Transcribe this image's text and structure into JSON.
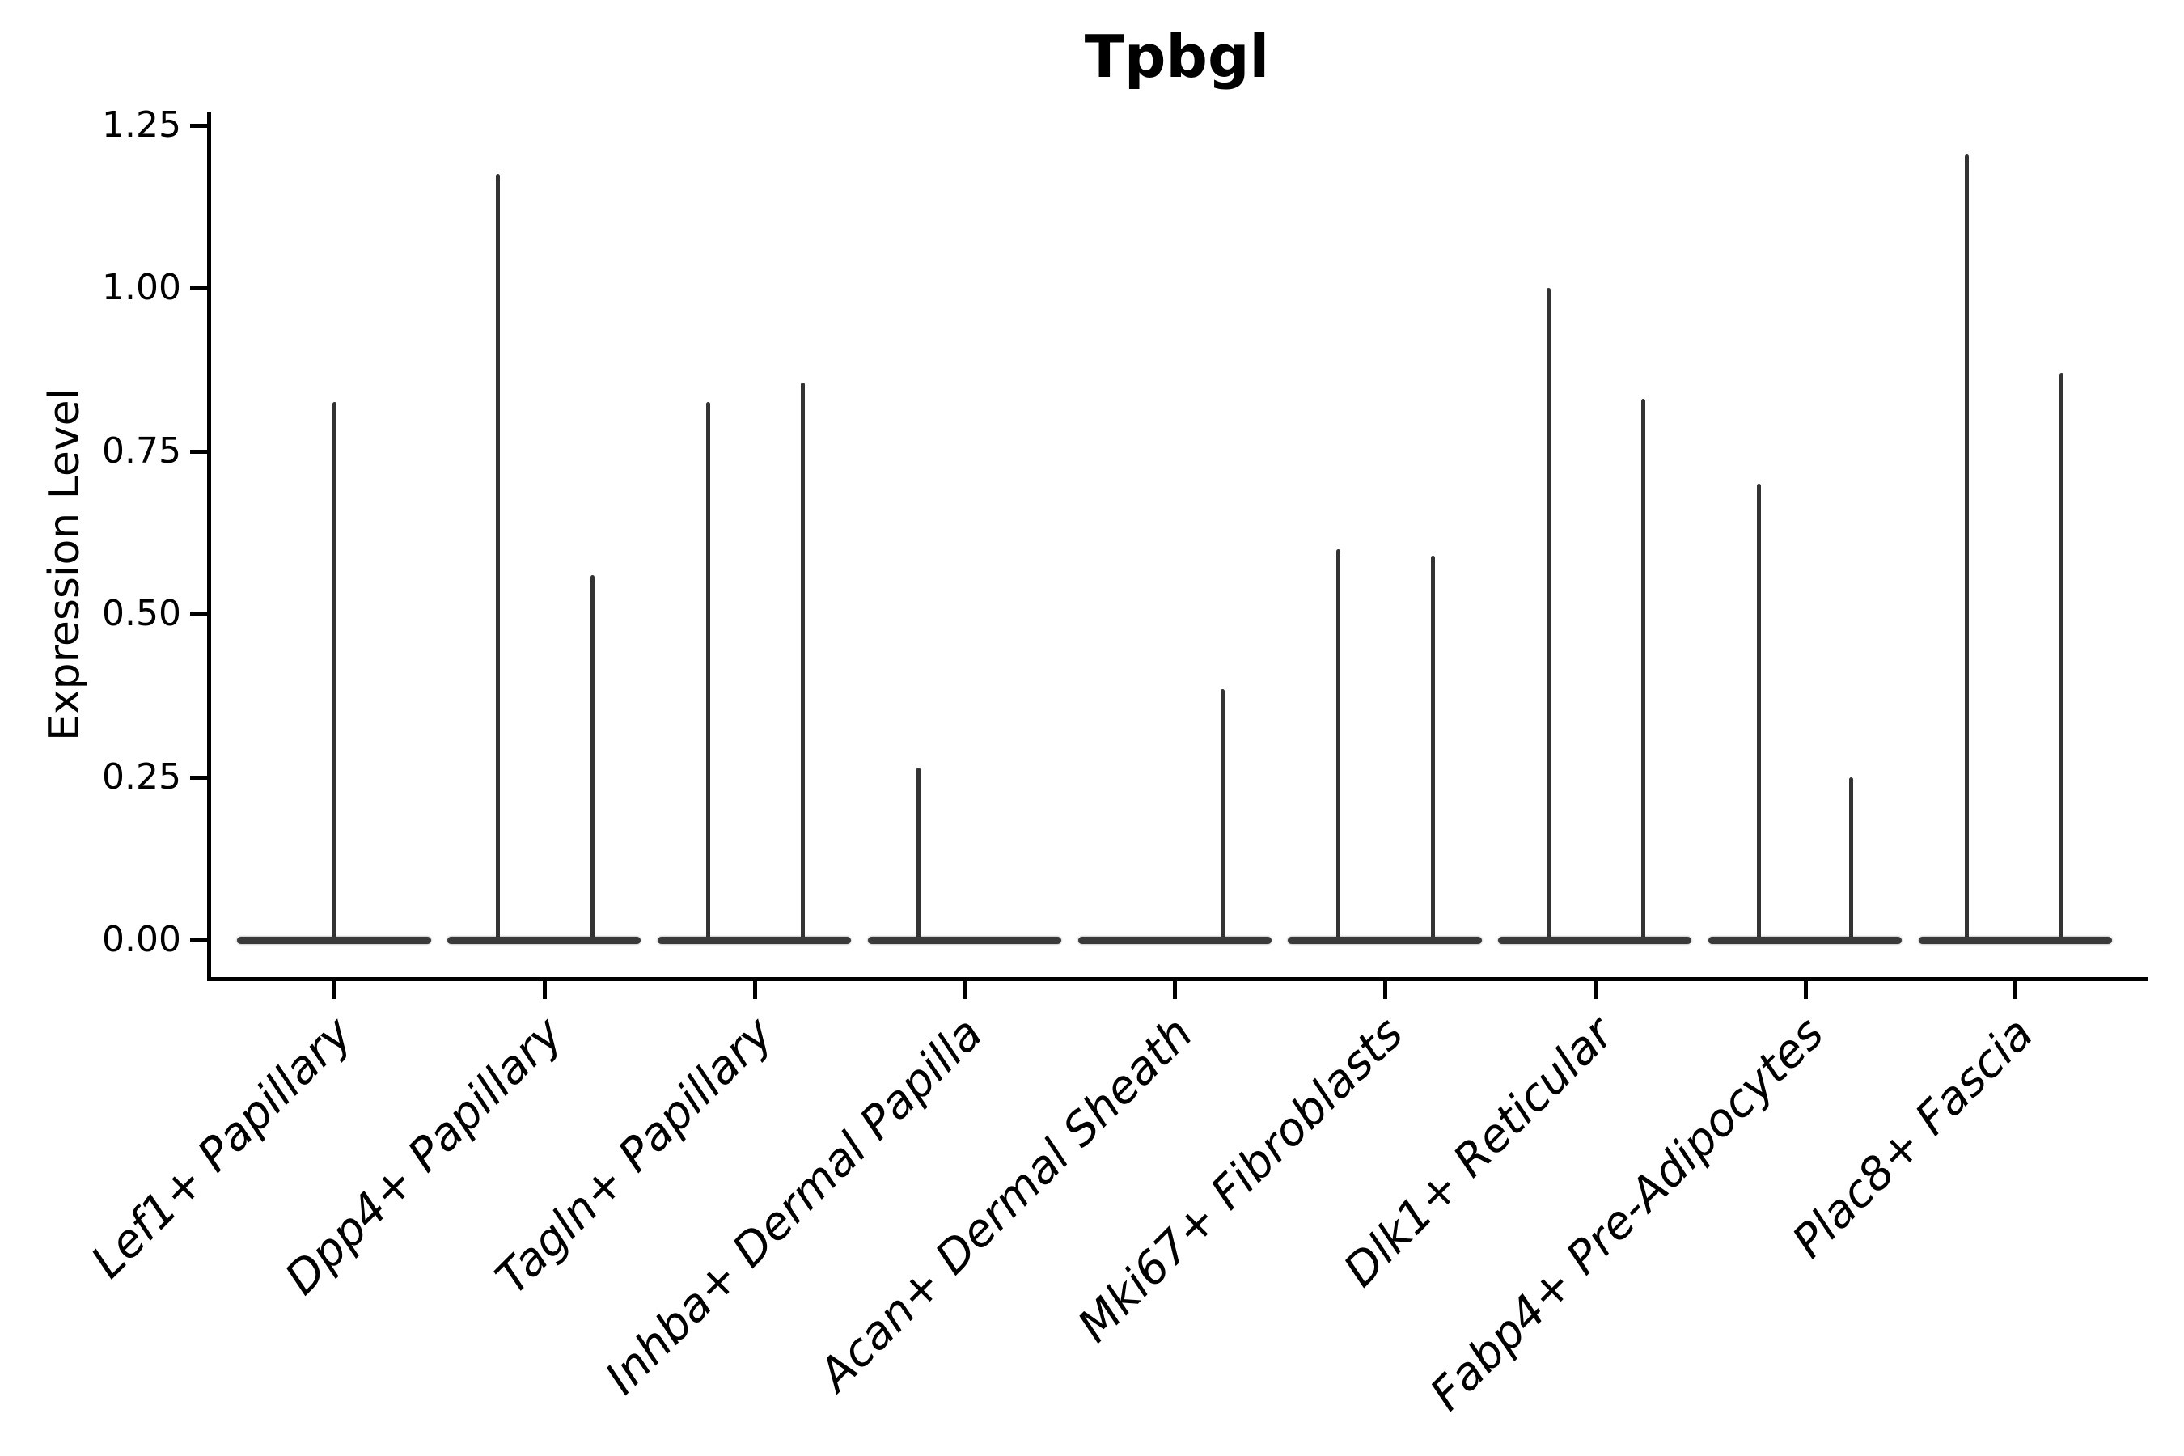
{
  "chart_data": {
    "type": "violin",
    "title": "Tpbgl",
    "ylabel": "Expression Level",
    "xlabel": "",
    "grid": false,
    "legend": null,
    "ylim": [
      -0.06,
      1.27
    ],
    "ytick_values": [
      0,
      0.25,
      0.5,
      0.75,
      1.0,
      1.25
    ],
    "ytick_labels": [
      "0.00",
      "0.25",
      "0.50",
      "0.75",
      "1.00",
      "1.25"
    ],
    "categories": [
      "Lef1+ Papillary",
      "Dpp4+ Papillary",
      "Tagln+ Papillary",
      "Inhba+ Dermal Papilla",
      "Acan+ Dermal Sheath",
      "Mki67+ Fibroblasts",
      "Dlk1+ Reticular",
      "Fabp4+ Pre-Adipocytes",
      "Plac8+ Fascia"
    ],
    "violins": [
      {
        "category": "Lef1+ Papillary",
        "base_halfwidth_frac": 0.46,
        "spikes": [
          {
            "dx_frac": 0.0,
            "max": 0.825
          }
        ]
      },
      {
        "category": "Dpp4+ Papillary",
        "base_halfwidth_frac": 0.46,
        "spikes": [
          {
            "dx_frac": -0.22,
            "max": 1.175
          },
          {
            "dx_frac": 0.23,
            "max": 0.56
          }
        ]
      },
      {
        "category": "Tagln+ Papillary",
        "base_halfwidth_frac": 0.46,
        "spikes": [
          {
            "dx_frac": -0.22,
            "max": 0.825
          },
          {
            "dx_frac": 0.23,
            "max": 0.855
          }
        ]
      },
      {
        "category": "Inhba+ Dermal Papilla",
        "base_halfwidth_frac": 0.46,
        "spikes": [
          {
            "dx_frac": -0.22,
            "max": 0.265
          }
        ]
      },
      {
        "category": "Acan+ Dermal Sheath",
        "base_halfwidth_frac": 0.46,
        "spikes": [
          {
            "dx_frac": 0.23,
            "max": 0.385
          }
        ]
      },
      {
        "category": "Mki67+ Fibroblasts",
        "base_halfwidth_frac": 0.46,
        "spikes": [
          {
            "dx_frac": -0.22,
            "max": 0.6
          },
          {
            "dx_frac": 0.23,
            "max": 0.59
          }
        ]
      },
      {
        "category": "Dlk1+ Reticular",
        "base_halfwidth_frac": 0.46,
        "spikes": [
          {
            "dx_frac": -0.22,
            "max": 1.0
          },
          {
            "dx_frac": 0.23,
            "max": 0.83
          }
        ]
      },
      {
        "category": "Fabp4+ Pre-Adipocytes",
        "base_halfwidth_frac": 0.46,
        "spikes": [
          {
            "dx_frac": -0.22,
            "max": 0.7
          },
          {
            "dx_frac": 0.22,
            "max": 0.25
          }
        ]
      },
      {
        "category": "Plac8+ Fascia",
        "base_halfwidth_frac": 0.46,
        "spikes": [
          {
            "dx_frac": -0.23,
            "max": 1.205
          },
          {
            "dx_frac": 0.22,
            "max": 0.87
          }
        ]
      }
    ],
    "colors": {
      "ink": "#000000",
      "violin": "#333333",
      "violin_base": "#3a3a3a",
      "background": "#ffffff"
    }
  }
}
